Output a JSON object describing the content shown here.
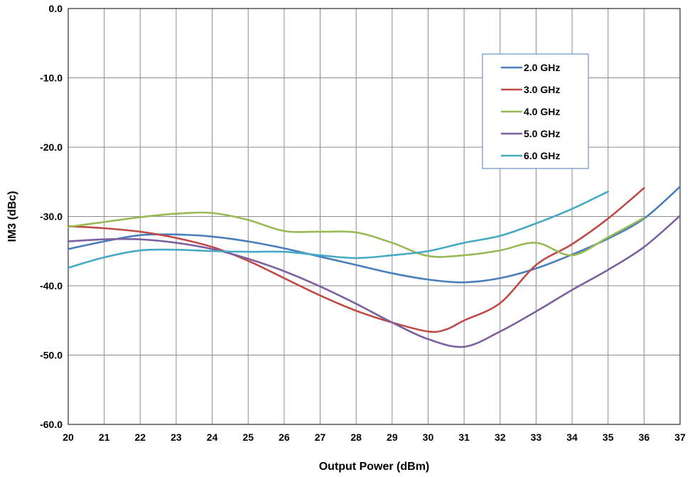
{
  "chart_data": {
    "type": "line",
    "title": "",
    "xlabel": "Output Power (dBm)",
    "ylabel": "IM3 (dBc)",
    "xlim": [
      20,
      37
    ],
    "ylim": [
      -60,
      0
    ],
    "x_ticks": [
      "20",
      "21",
      "22",
      "23",
      "24",
      "25",
      "26",
      "27",
      "28",
      "29",
      "30",
      "31",
      "32",
      "33",
      "34",
      "35",
      "36",
      "37"
    ],
    "y_ticks": [
      "0.0",
      "-10.0",
      "-20.0",
      "-30.0",
      "-40.0",
      "-50.0",
      "-60.0"
    ],
    "grid": true,
    "legend_position": "top-right",
    "series": [
      {
        "name": "2.0 GHz",
        "color": "#4a7ebb",
        "points": [
          [
            20,
            -34.7
          ],
          [
            21,
            -33.6
          ],
          [
            22,
            -32.7
          ],
          [
            23,
            -32.6
          ],
          [
            24,
            -32.9
          ],
          [
            25,
            -33.6
          ],
          [
            26,
            -34.6
          ],
          [
            27,
            -35.8
          ],
          [
            28,
            -37.0
          ],
          [
            29,
            -38.2
          ],
          [
            30,
            -39.1
          ],
          [
            31,
            -39.5
          ],
          [
            32,
            -38.9
          ],
          [
            33,
            -37.5
          ],
          [
            34,
            -35.5
          ],
          [
            35,
            -33.2
          ],
          [
            36,
            -30.3
          ],
          [
            37,
            -25.7
          ]
        ]
      },
      {
        "name": "3.0 GHz",
        "color": "#be4b48",
        "points": [
          [
            20,
            -31.4
          ],
          [
            21,
            -31.7
          ],
          [
            22,
            -32.2
          ],
          [
            23,
            -33.1
          ],
          [
            24,
            -34.4
          ],
          [
            25,
            -36.4
          ],
          [
            26,
            -38.9
          ],
          [
            27,
            -41.4
          ],
          [
            28,
            -43.6
          ],
          [
            29,
            -45.3
          ],
          [
            30,
            -46.6
          ],
          [
            30.5,
            -46.3
          ],
          [
            31,
            -45.0
          ],
          [
            32,
            -42.5
          ],
          [
            33,
            -37.0
          ],
          [
            34,
            -34.0
          ],
          [
            35,
            -30.3
          ],
          [
            36,
            -25.9
          ]
        ]
      },
      {
        "name": "4.0 GHz",
        "color": "#98b954",
        "points": [
          [
            20,
            -31.5
          ],
          [
            21,
            -30.8
          ],
          [
            22,
            -30.1
          ],
          [
            23,
            -29.6
          ],
          [
            24,
            -29.5
          ],
          [
            25,
            -30.5
          ],
          [
            26,
            -32.1
          ],
          [
            27,
            -32.2
          ],
          [
            28,
            -32.3
          ],
          [
            29,
            -33.8
          ],
          [
            30,
            -35.7
          ],
          [
            31,
            -35.6
          ],
          [
            32,
            -34.9
          ],
          [
            33,
            -33.8
          ],
          [
            34,
            -35.6
          ],
          [
            35,
            -33.0
          ],
          [
            36,
            -30.2
          ]
        ]
      },
      {
        "name": "5.0 GHz",
        "color": "#7d60a0",
        "points": [
          [
            20,
            -33.6
          ],
          [
            21,
            -33.3
          ],
          [
            22,
            -33.3
          ],
          [
            23,
            -33.8
          ],
          [
            24,
            -34.7
          ],
          [
            25,
            -36.1
          ],
          [
            26,
            -37.9
          ],
          [
            27,
            -40.1
          ],
          [
            28,
            -42.6
          ],
          [
            29,
            -45.3
          ],
          [
            30,
            -47.7
          ],
          [
            31,
            -48.8
          ],
          [
            32,
            -46.6
          ],
          [
            33,
            -43.7
          ],
          [
            34,
            -40.6
          ],
          [
            35,
            -37.7
          ],
          [
            36,
            -34.4
          ],
          [
            37,
            -29.9
          ]
        ]
      },
      {
        "name": "6.0 GHz",
        "color": "#46aac5",
        "points": [
          [
            20,
            -37.4
          ],
          [
            21,
            -35.9
          ],
          [
            22,
            -34.9
          ],
          [
            23,
            -34.8
          ],
          [
            24,
            -35.0
          ],
          [
            25,
            -35.1
          ],
          [
            26,
            -35.1
          ],
          [
            27,
            -35.6
          ],
          [
            28,
            -36.0
          ],
          [
            29,
            -35.6
          ],
          [
            30,
            -35.0
          ],
          [
            31,
            -33.8
          ],
          [
            32,
            -32.8
          ],
          [
            33,
            -31.0
          ],
          [
            34,
            -28.9
          ],
          [
            35,
            -26.4
          ]
        ]
      }
    ]
  }
}
